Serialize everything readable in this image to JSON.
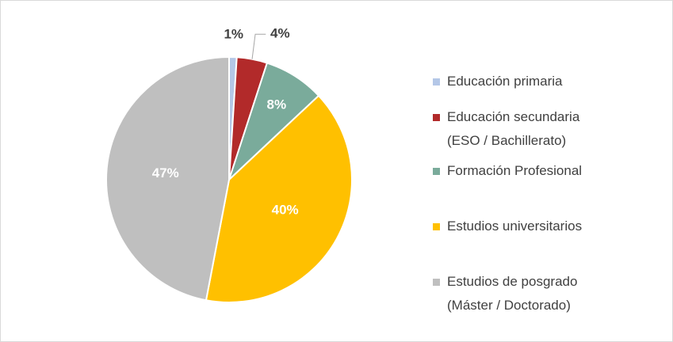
{
  "chart_data": {
    "type": "pie",
    "categories": [
      "Educación primaria",
      "Educación secundaria\n(ESO / Bachillerato)",
      "Formación Profesional",
      "Estudios universitarios",
      "Estudios de posgrado\n(Máster / Doctorado)"
    ],
    "values": [
      1,
      4,
      8,
      40,
      47
    ],
    "value_labels": [
      "1%",
      "4%",
      "8%",
      "40%",
      "47%"
    ],
    "colors": [
      "#b4c7e7",
      "#b22a2a",
      "#7aab9b",
      "#ffc000",
      "#bfbfbf"
    ],
    "legend": "right"
  }
}
